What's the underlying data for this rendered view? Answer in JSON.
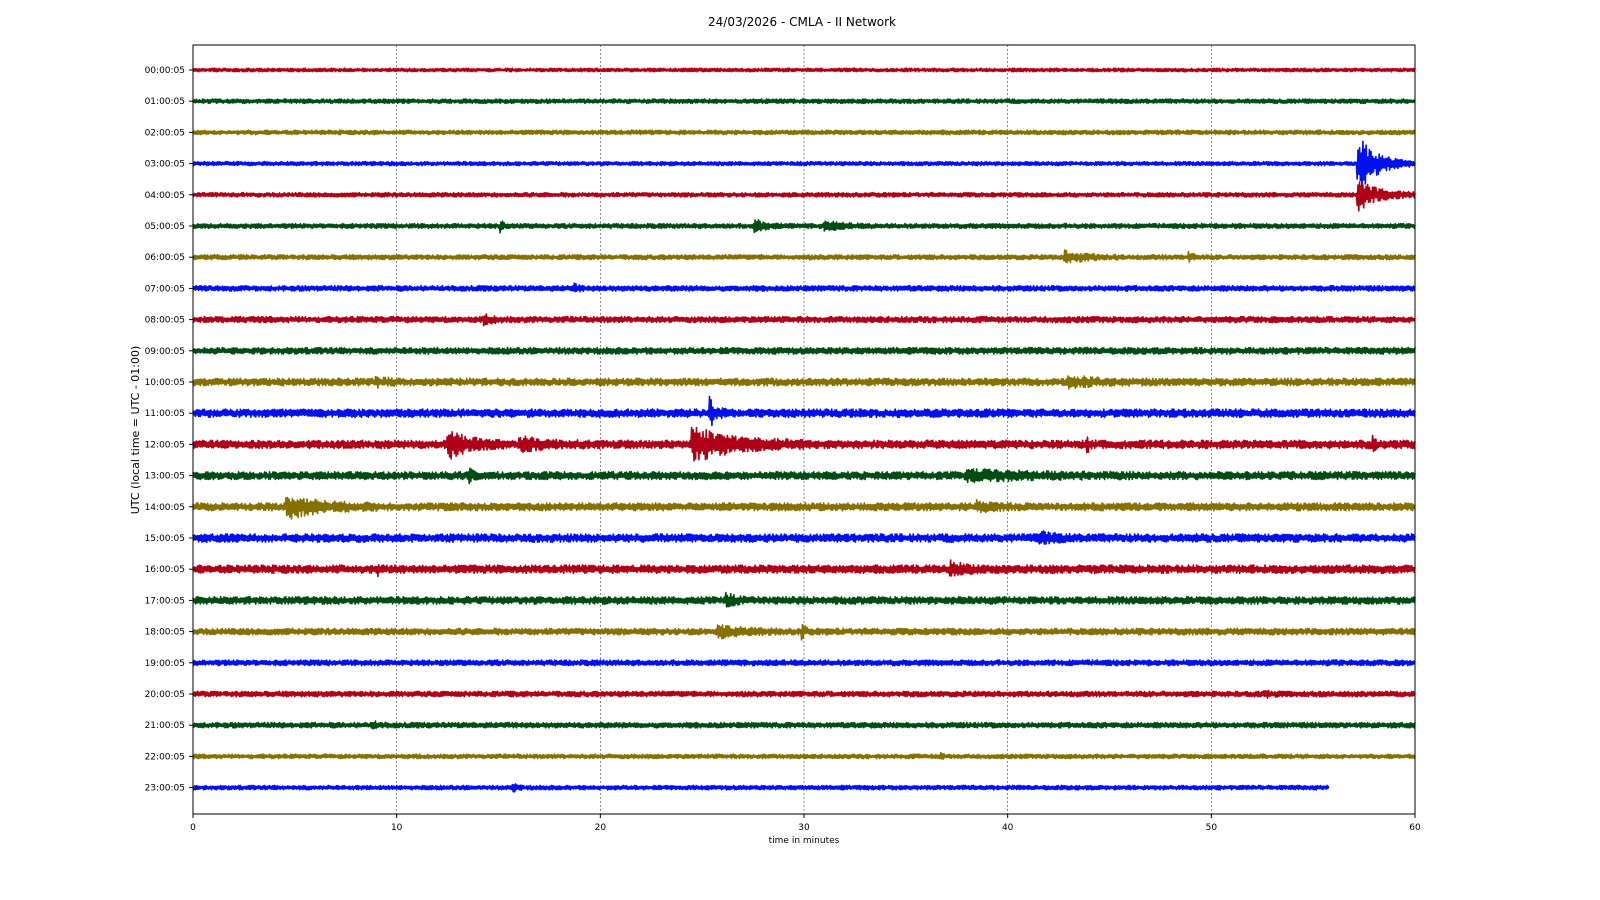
{
  "chart_data": {
    "type": "line",
    "title": "24/03/2026 - CMLA - II Network",
    "xlabel": "time in minutes",
    "ylabel": "UTC (local time = UTC - 01:00)",
    "xlim": [
      0,
      60
    ],
    "xticks": [
      "0",
      "10",
      "20",
      "30",
      "40",
      "50",
      "60"
    ],
    "xgrid": true,
    "colors": [
      "#b00018",
      "#004d14",
      "#857000",
      "#0010ee"
    ],
    "series": [
      {
        "label": "00:00:05",
        "end_minute": 60,
        "noise_level": 0.16,
        "events": []
      },
      {
        "label": "01:00:05",
        "end_minute": 60,
        "noise_level": 0.2,
        "events": []
      },
      {
        "label": "02:00:05",
        "end_minute": 60,
        "noise_level": 0.2,
        "events": []
      },
      {
        "label": "03:00:05",
        "end_minute": 60,
        "noise_level": 0.18,
        "events": [
          {
            "minute": 57.2,
            "amplitude": 2.6,
            "duration": 2.6
          }
        ]
      },
      {
        "label": "04:00:05",
        "end_minute": 60,
        "noise_level": 0.2,
        "events": [
          {
            "minute": 57.2,
            "amplitude": 1.4,
            "duration": 2.8
          }
        ]
      },
      {
        "label": "05:00:05",
        "end_minute": 60,
        "noise_level": 0.22,
        "events": [
          {
            "minute": 15.1,
            "amplitude": 0.9,
            "duration": 0.3
          },
          {
            "minute": 27.6,
            "amplitude": 0.5,
            "duration": 1.5
          },
          {
            "minute": 31.0,
            "amplitude": 0.35,
            "duration": 2.5
          }
        ]
      },
      {
        "label": "06:00:05",
        "end_minute": 60,
        "noise_level": 0.22,
        "events": [
          {
            "minute": 42.8,
            "amplitude": 0.45,
            "duration": 3.0
          },
          {
            "minute": 48.9,
            "amplitude": 0.5,
            "duration": 0.5
          }
        ]
      },
      {
        "label": "07:00:05",
        "end_minute": 60,
        "noise_level": 0.25,
        "events": [
          {
            "minute": 18.7,
            "amplitude": 0.3,
            "duration": 0.6
          }
        ]
      },
      {
        "label": "08:00:05",
        "end_minute": 60,
        "noise_level": 0.28,
        "events": [
          {
            "minute": 14.3,
            "amplitude": 0.3,
            "duration": 1.2
          }
        ]
      },
      {
        "label": "09:00:05",
        "end_minute": 60,
        "noise_level": 0.3,
        "events": []
      },
      {
        "label": "10:00:05",
        "end_minute": 60,
        "noise_level": 0.34,
        "events": [
          {
            "minute": 9.0,
            "amplitude": 0.3,
            "duration": 1.5
          },
          {
            "minute": 43.0,
            "amplitude": 0.35,
            "duration": 4.0
          }
        ]
      },
      {
        "label": "11:00:05",
        "end_minute": 60,
        "noise_level": 0.38,
        "events": [
          {
            "minute": 25.4,
            "amplitude": 1.2,
            "duration": 0.8
          }
        ]
      },
      {
        "label": "12:00:05",
        "end_minute": 60,
        "noise_level": 0.38,
        "events": [
          {
            "minute": 12.5,
            "amplitude": 1.2,
            "duration": 3.0
          },
          {
            "minute": 16.0,
            "amplitude": 0.5,
            "duration": 3.5
          },
          {
            "minute": 24.5,
            "amplitude": 1.5,
            "duration": 5.5
          },
          {
            "minute": 43.9,
            "amplitude": 0.5,
            "duration": 0.5
          },
          {
            "minute": 57.9,
            "amplitude": 0.5,
            "duration": 0.5
          }
        ]
      },
      {
        "label": "13:00:05",
        "end_minute": 60,
        "noise_level": 0.36,
        "events": [
          {
            "minute": 38.0,
            "amplitude": 0.35,
            "duration": 8.0
          },
          {
            "minute": 13.6,
            "amplitude": 0.6,
            "duration": 0.4
          }
        ]
      },
      {
        "label": "14:00:05",
        "end_minute": 60,
        "noise_level": 0.36,
        "events": [
          {
            "minute": 4.6,
            "amplitude": 0.9,
            "duration": 4.5
          },
          {
            "minute": 38.5,
            "amplitude": 0.3,
            "duration": 2.0
          }
        ]
      },
      {
        "label": "15:00:05",
        "end_minute": 60,
        "noise_level": 0.38,
        "events": [
          {
            "minute": 41.5,
            "amplitude": 0.4,
            "duration": 2.0
          }
        ]
      },
      {
        "label": "16:00:05",
        "end_minute": 60,
        "noise_level": 0.38,
        "events": [
          {
            "minute": 37.2,
            "amplitude": 0.5,
            "duration": 2.0
          },
          {
            "minute": 9.1,
            "amplitude": 0.4,
            "duration": 0.4
          }
        ]
      },
      {
        "label": "17:00:05",
        "end_minute": 60,
        "noise_level": 0.34,
        "events": [
          {
            "minute": 26.2,
            "amplitude": 0.5,
            "duration": 1.0
          }
        ]
      },
      {
        "label": "18:00:05",
        "end_minute": 60,
        "noise_level": 0.3,
        "events": [
          {
            "minute": 25.8,
            "amplitude": 0.45,
            "duration": 3.0
          },
          {
            "minute": 29.9,
            "amplitude": 0.7,
            "duration": 0.4
          }
        ]
      },
      {
        "label": "19:00:05",
        "end_minute": 60,
        "noise_level": 0.26,
        "events": []
      },
      {
        "label": "20:00:05",
        "end_minute": 60,
        "noise_level": 0.25,
        "events": [
          {
            "minute": 52.6,
            "amplitude": 0.3,
            "duration": 0.8
          }
        ]
      },
      {
        "label": "21:00:05",
        "end_minute": 60,
        "noise_level": 0.25,
        "events": [
          {
            "minute": 8.8,
            "amplitude": 0.25,
            "duration": 0.8
          }
        ]
      },
      {
        "label": "22:00:05",
        "end_minute": 60,
        "noise_level": 0.2,
        "events": [
          {
            "minute": 36.7,
            "amplitude": 0.35,
            "duration": 0.3
          }
        ]
      },
      {
        "label": "23:00:05",
        "end_minute": 55.8,
        "noise_level": 0.2,
        "events": [
          {
            "minute": 15.7,
            "amplitude": 0.3,
            "duration": 0.8
          }
        ]
      }
    ]
  }
}
